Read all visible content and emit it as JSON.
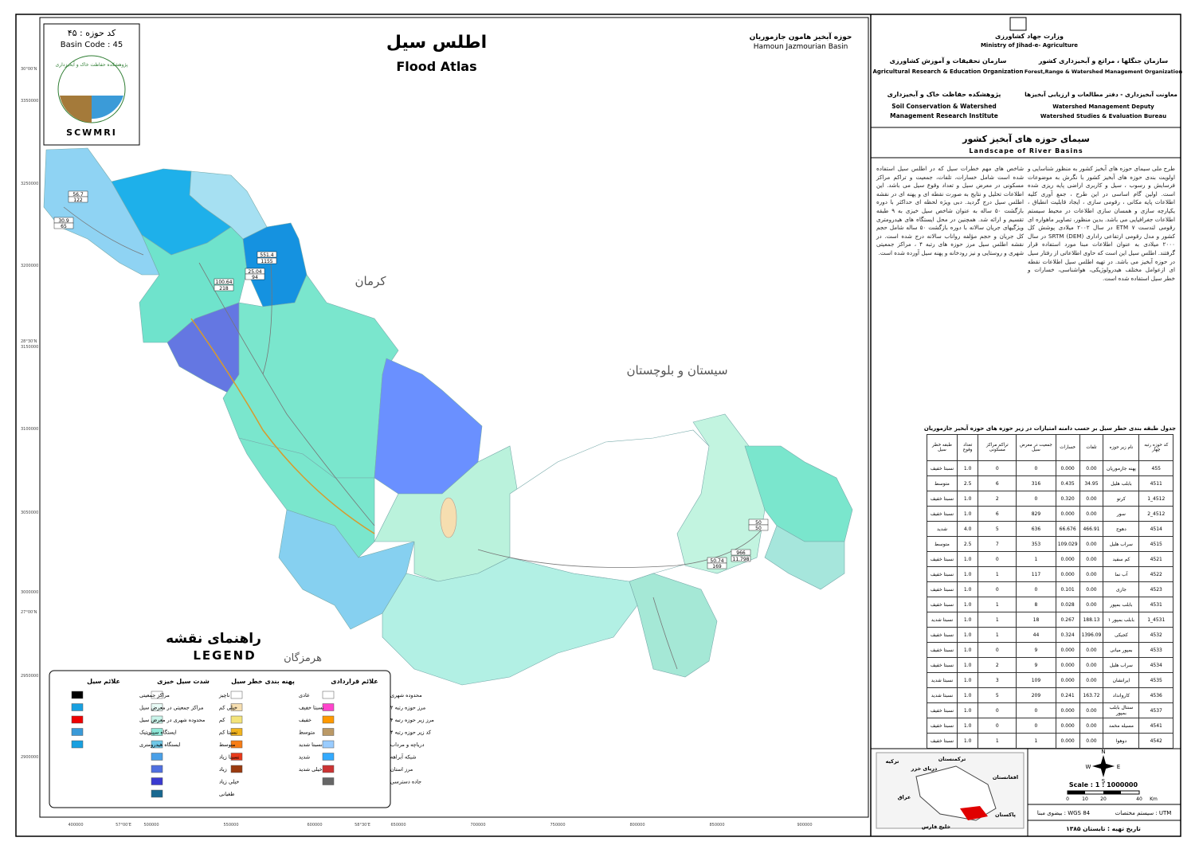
{
  "header": {
    "basin_code_fa": "کد حوزه : ۴۵",
    "basin_code_en": "Basin Code : 45",
    "logo_text": "SCWMRI",
    "logo_arc": "پژوهشکده حفاظت خاک و آبخیزداری",
    "title_fa": "اطلس سیل",
    "title_en": "Flood Atlas",
    "basin_fa": "حوزه آبخیز هامون جازموریان",
    "basin_en": "Hamoun Jazmourian Basin"
  },
  "map": {
    "provinces": [
      "کرمان",
      "سیستان و بلوچستان",
      "هرمزگان"
    ],
    "point_labels": [
      "56.7",
      "122",
      "30.9",
      "65",
      "551.4",
      "1155",
      "25.04",
      "94",
      "100.64",
      "218",
      "966",
      "11.798",
      "50.74",
      "169",
      "50",
      "50"
    ],
    "coords_left": [
      "30°00'N",
      "3350000",
      "3250000",
      "3200000",
      "28°30'N",
      "3150000",
      "3100000",
      "3050000",
      "3000000",
      "27°00'N",
      "2950000",
      "2900000"
    ],
    "coords_bottom": [
      "400000",
      "57°00'E",
      "500000",
      "550000",
      "600000",
      "58°30'E",
      "650000",
      "700000",
      "750000",
      "800000",
      "850000",
      "900000"
    ]
  },
  "legend": {
    "title_fa": "راهنمای نقشه",
    "title_en": "LEGEND",
    "columns": [
      {
        "title": "علائم قراردادی",
        "items": [
          "محدوده شهری",
          "مرز حوزه رتبه ۲",
          "مرز زیر حوزه رتبه ۴",
          "کد زیر حوزه رتبه ۴",
          "دریاچه و مرداب",
          "شبکه آبراهه",
          "مرز استان",
          "جاده دسترسی"
        ]
      },
      {
        "title": "پهنه بندی خطر سیل",
        "items": [
          "عادی",
          "نسبتا خفیف",
          "خفیف",
          "متوسط",
          "نسبتا شدید",
          "شدید",
          "خیلی شدید"
        ]
      },
      {
        "title": "شدت سیل خیزی",
        "items": [
          "ناچیز",
          "خیلی کم",
          "کم",
          "نسبتا کم",
          "متوسط",
          "نسبتا زیاد",
          "زیاد",
          "خیلی زیاد",
          "طغیانی"
        ]
      },
      {
        "title": "علائم سیل",
        "items": [
          "مراکز جمعیتی",
          "مراکز جمعیتی در معرض سیل",
          "محدوده شهری در معرض سیل",
          "ایستگاه سینوپتیک",
          "ایستگاه هیدرومتری"
        ]
      }
    ]
  },
  "panel": {
    "ministry_fa": "وزارت جهاد کشاورزی",
    "ministry_en": "Ministry of Jihad-e- Agriculture",
    "org_left_fa": "سازمان تحقیقات و آموزش کشاورزی",
    "org_left_en": "Agricultural Research & Education Organization",
    "org_right_fa": "سازمان جنگلها ، مراتع و آبخیزداری کشور",
    "org_right_en": "Forest,Range & Watershed Management Organization",
    "inst_fa": "پژوهشکده حفاظت خاک و آبخیزداری",
    "inst_en": "Soil Conservation & Watershed Management Research Institute",
    "deputy_fa": "معاونت آبخیزداری - دفتر مطالعات و ارزیابی آبخیزها",
    "deputy_en": "Watershed Management Deputy Watershed Studies & Evaluation Bureau",
    "landscape_fa": "سیمای حوزه های آبخیز کشور",
    "landscape_en": "Landscape of River Basins",
    "para_right": "طرح ملی سیمای حوزه های آبخیز کشور به منظور شناسایی و اولویت بندی حوزه های آبخیز کشور با نگرش به موضوعات فرسایش و رسوب ، سیل و کاربری اراضی پایه ریزی شده است. اولین گام اساسی در این طرح ، جمع آوری کلیه اطلاعات پایه مکانی ، رقومی سازی ، ایجاد قابلیت انطباق ، یکپارچه سازی و همسان سازی اطلاعات در محیط سیستم اطلاعات جغرافیایی می باشد. بدین منظور، تصاویر ماهواره ای رقومی لندست ۷ ETM در سال ۲۰۰۲ میلادی پوشش کل کشور و مدل رقومی ارتفاعی راداری SRTM (DEM) در سال ۲۰۰۰ میلادی به عنوان اطلاعات مبنا مورد استفاده قرار گرفتند. اطلس سیل این است که حاوی اطلاعاتی از رفتار سیل در حوزه آبخیز می باشد. در تهیه اطلس سیل اطلاعات نقطه ای ازعوامل مختلف هیدرولوژیکی، هواشناسی، خسارات و خطر سیل استفاده شده است.",
    "para_left": "شاخص های مهم خطرات سیل که در اطلس سیل استفاده شده است شامل خسارات، تلفات، جمعیت و تراکم مراکز مسکونی در معرض سیل و تعداد وقوع سیل می باشد. این اطلاعات تحلیل و نتایج به صورت نقطه ای و پهنه ای در نقشه اطلس سیل درج گردید. دبی ویژه لحظه ای حداکثر با دوره بازگشت ۵۰ ساله به عنوان شاخص سیل خیزی به ۹ طبقه تقسیم و ارائه شد. همچنین در محل ایستگاه های هیدرومتری ویژگیهای جریان سالانه با دوره بازگشت ۵۰ ساله شامل حجم کل جریان و حجم مؤلفه رواناب سالانه درج شده است. در نقشه اطلس سیل مرز حوزه های رتبه ۴ ، مراکز جمعیتی شهری و روستایی و نیز رودخانه و پهنه سیل آورده شده است."
  },
  "table": {
    "title": "جدول طبقه بندی خطر سیل بر حسب دامنه امتیازات در زیر حوزه های حوزه آبخیز جازموریان",
    "headers": [
      "کد حوزه رتبه چهار",
      "نام زیر حوزه",
      "تلفات",
      "خسارات",
      "جمعیت در معرض سیل",
      "تراکم مراکز مسکونی",
      "تعداد وقوع",
      "طبقه خطر سیل"
    ],
    "rows": [
      [
        "455",
        "پهنه جازموریان",
        "0.00",
        "0.000",
        "0",
        "0",
        "1.0",
        "نسبتا خفیف"
      ],
      [
        "4511",
        "بابلب هلیل",
        "34.95",
        "0.435",
        "316",
        "6",
        "2.5",
        "متوسط"
      ],
      [
        "4512_1",
        "کرتو",
        "0.00",
        "0.320",
        "0",
        "2",
        "1.0",
        "نسبتا خفیف"
      ],
      [
        "4512_2",
        "سور",
        "0.00",
        "0.000",
        "829",
        "6",
        "1.0",
        "نسبتا خفیف"
      ],
      [
        "4514",
        "دهوج",
        "466.91",
        "66.676",
        "636",
        "5",
        "4.0",
        "شدید"
      ],
      [
        "4515",
        "سراب هلیل",
        "0.00",
        "109.029",
        "353",
        "7",
        "2.5",
        "متوسط"
      ],
      [
        "4521",
        "کم سفید",
        "0.00",
        "0.000",
        "1",
        "0",
        "1.0",
        "نسبتا خفیف"
      ],
      [
        "4522",
        "آب نما",
        "0.00",
        "0.000",
        "117",
        "1",
        "1.0",
        "نسبتا خفیف"
      ],
      [
        "4523",
        "جازی",
        "0.00",
        "0.101",
        "0",
        "0",
        "1.0",
        "نسبتا خفیف"
      ],
      [
        "4531",
        "بابلب بمپور",
        "0.00",
        "0.028",
        "8",
        "1",
        "1.0",
        "نسبتا خفیف"
      ],
      [
        "4531_1",
        "بابلب بمپور ۱",
        "188.13",
        "0.267",
        "18",
        "1",
        "1.0",
        "نسبتا شدید"
      ],
      [
        "4532",
        "کجیکی",
        "1396.09",
        "0.324",
        "44",
        "1",
        "1.0",
        "نسبتا خفیف"
      ],
      [
        "4533",
        "بمپور میانی",
        "0.00",
        "0.000",
        "9",
        "0",
        "1.0",
        "نسبتا خفیف"
      ],
      [
        "4534",
        "سراب هلیل",
        "0.00",
        "0.000",
        "9",
        "2",
        "1.0",
        "نسبتا خفیف"
      ],
      [
        "4535",
        "ایرانشان",
        "0.00",
        "0.000",
        "109",
        "3",
        "1.0",
        "نسبتا شدید"
      ],
      [
        "4536",
        "کاروانداد",
        "163.72",
        "0.241",
        "209",
        "5",
        "1.0",
        "نسبتا شدید"
      ],
      [
        "4537",
        "سنتال بابلب بمپور",
        "0.00",
        "0.000",
        "0",
        "0",
        "1.0",
        "نسبتا خفیف"
      ],
      [
        "4541",
        "مسیله مخمد",
        "0.00",
        "0.000",
        "0",
        "0",
        "1.0",
        "نسبتا خفیف"
      ],
      [
        "4542",
        "دوهوا",
        "0.00",
        "0.000",
        "1",
        "1",
        "1.0",
        "نسبتا خفیف"
      ]
    ]
  },
  "footer": {
    "inset_labels": [
      "ترکمنستان",
      "دریای خزر",
      "ترکیه",
      "افغانستان",
      "عراق",
      "پاکستان",
      "خلیج فارس"
    ],
    "compass": [
      "N",
      "W",
      "E",
      "S"
    ],
    "scale": "Scale : 1 : 1000000",
    "scale_ticks": [
      "0",
      "10",
      "20",
      "40",
      "Km"
    ],
    "projection": "سیستم مختصات : UTM",
    "datum": "بیضوی مبنا : WGS 84",
    "date": "تاریخ تهیه : تابستان ۱۳۸۵"
  }
}
